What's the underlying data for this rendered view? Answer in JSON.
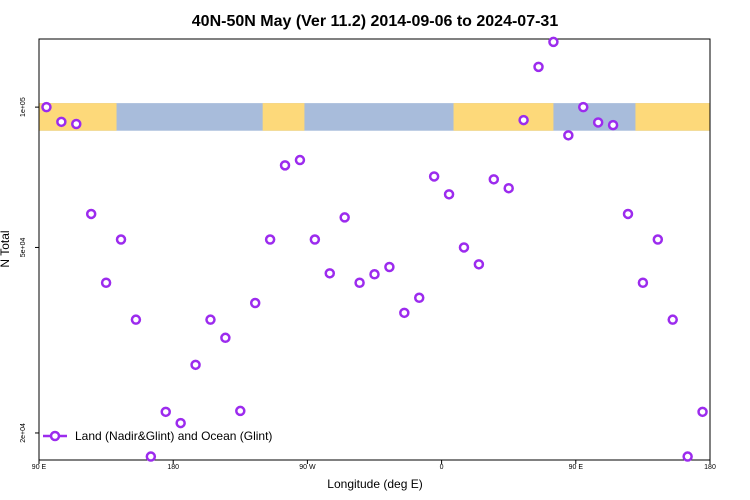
{
  "chart_data": {
    "type": "scatter",
    "title": "40N-50N May (Ver 11.2)   2014-09-06 to 2024-07-31",
    "xlabel": "Longitude (deg E)",
    "ylabel": "N Total",
    "x_scale": "linear",
    "y_scale": "log",
    "xlim": [
      90,
      540
    ],
    "ylim": [
      17500,
      140000
    ],
    "x_ticks": [
      {
        "value": 90,
        "label": "90 E"
      },
      {
        "value": 180,
        "label": "180"
      },
      {
        "value": 270,
        "label": "90 W"
      },
      {
        "value": 360,
        "label": "0"
      },
      {
        "value": 450,
        "label": "90 E"
      },
      {
        "value": 540,
        "label": "180"
      }
    ],
    "y_ticks": [
      {
        "value": 20000,
        "label": "2e+04"
      },
      {
        "value": 50000,
        "label": "5e+04"
      },
      {
        "value": 100000,
        "label": "1e+05"
      }
    ],
    "map_strip": {
      "lat_range": "40N-50N",
      "y_from": 89000,
      "y_to": 102000,
      "land_color": "#FDD97A",
      "ocean_color": "#A8BCDB",
      "land_segments": [
        [
          90,
          142
        ],
        [
          240,
          268
        ],
        [
          368,
          435
        ],
        [
          490,
          540
        ]
      ]
    },
    "grid": false,
    "legend": {
      "position": "bottom-left",
      "label": "Land (Nadir&Glint) and Ocean (Glint)"
    },
    "series": [
      {
        "name": "Land (Nadir&Glint) and Ocean (Glint)",
        "color": "#9C2BEE",
        "x": [
          95,
          105,
          115,
          125,
          135,
          145,
          155,
          165,
          175,
          185,
          195,
          205,
          215,
          225,
          235,
          245,
          255,
          265,
          275,
          285,
          295,
          305,
          315,
          325,
          335,
          345,
          355,
          365,
          375,
          385,
          395,
          405,
          415,
          425,
          435,
          445,
          455,
          465,
          475,
          485,
          495,
          505,
          515,
          525,
          535
        ],
        "y": [
          100000,
          93000,
          92000,
          59000,
          42000,
          52000,
          35000,
          17800,
          22200,
          21000,
          28000,
          35000,
          32000,
          22300,
          38000,
          52000,
          75000,
          77000,
          52000,
          44000,
          58000,
          42000,
          43800,
          45400,
          36200,
          39000,
          71000,
          65000,
          50000,
          46000,
          70000,
          67000,
          93800,
          122000,
          138000,
          87000,
          100000,
          92700,
          91500,
          59000,
          42000,
          52000,
          35000,
          17800,
          22200
        ]
      }
    ]
  }
}
